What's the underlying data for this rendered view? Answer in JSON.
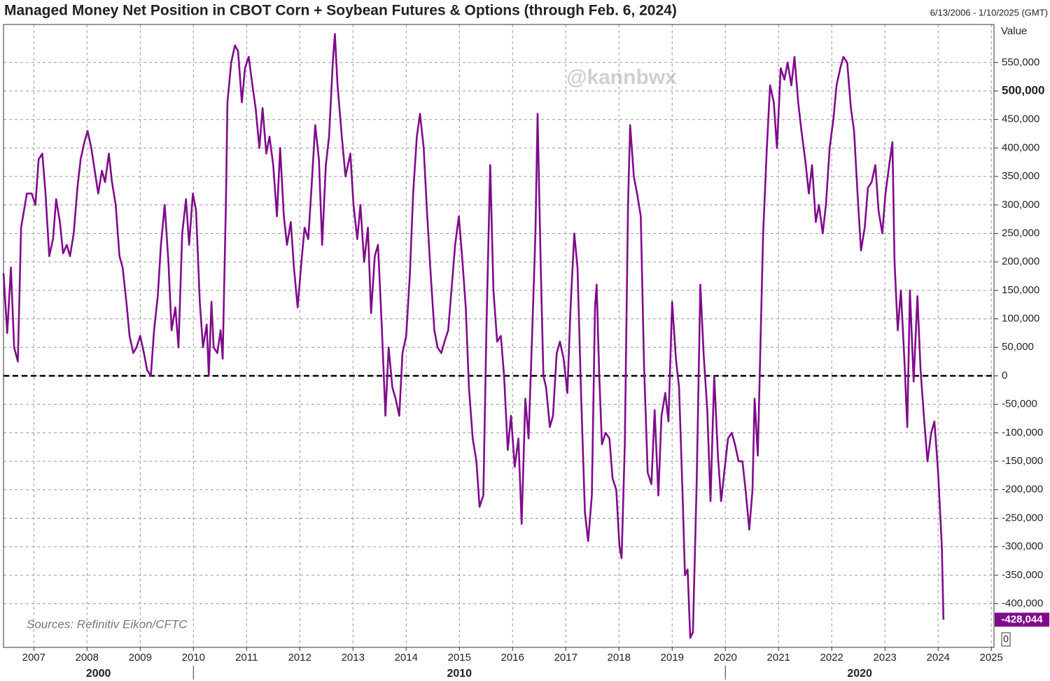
{
  "chart_data": {
    "type": "line",
    "title": "Managed Money Net Position in CBOT Corn + Soybean Futures & Options (through Feb. 6, 2024)",
    "date_range": "6/13/2006 - 1/10/2025 (GMT)",
    "y_axis_header": "Value",
    "watermark": "@kannbwx",
    "source": "Sources: Refinitiv Eikon/CFTC",
    "bottom_axis_label": "0",
    "end_label": "-428,044",
    "zero_line": true,
    "grid": true,
    "bold_tick": 500000,
    "xlim": [
      2006.43,
      2025.05
    ],
    "xticks": [
      2007,
      2008,
      2009,
      2010,
      2011,
      2012,
      2013,
      2014,
      2015,
      2016,
      2017,
      2018,
      2019,
      2020,
      2021,
      2022,
      2023,
      2024,
      2025
    ],
    "x_decades": [
      2000,
      2010,
      2020
    ],
    "ylim": [
      -476700,
      616700
    ],
    "yticks": [
      {
        "value": -400000,
        "label": "-400,000"
      },
      {
        "value": -350000,
        "label": "-350,000"
      },
      {
        "value": -300000,
        "label": "-300,000"
      },
      {
        "value": -250000,
        "label": "-250,000"
      },
      {
        "value": -200000,
        "label": "-200,000"
      },
      {
        "value": -150000,
        "label": "-150,000"
      },
      {
        "value": -100000,
        "label": "-100,000"
      },
      {
        "value": -50000,
        "label": "-50,000"
      },
      0,
      {
        "value": 50000,
        "label": "50,000"
      },
      {
        "value": 100000,
        "label": "100,000"
      },
      {
        "value": 150000,
        "label": "150,000"
      },
      {
        "value": 200000,
        "label": "200,000"
      },
      {
        "value": 250000,
        "label": "250,000"
      },
      {
        "value": 300000,
        "label": "300,000"
      },
      {
        "value": 350000,
        "label": "350,000"
      },
      {
        "value": 400000,
        "label": "400,000"
      },
      {
        "value": 450000,
        "label": "450,000"
      },
      {
        "value": 500000,
        "label": "500,000"
      },
      {
        "value": 550000,
        "label": "550,000"
      }
    ],
    "x": [
      2006.43,
      2006.5,
      2006.57,
      2006.63,
      2006.7,
      2006.76,
      2006.87,
      2006.96,
      2007.03,
      2007.09,
      2007.16,
      2007.22,
      2007.29,
      2007.36,
      2007.42,
      2007.49,
      2007.55,
      2007.62,
      2007.68,
      2007.75,
      2007.82,
      2007.88,
      2007.95,
      2008.01,
      2008.08,
      2008.21,
      2008.28,
      2008.34,
      2008.41,
      2008.47,
      2008.54,
      2008.61,
      2008.67,
      2008.74,
      2008.8,
      2008.87,
      2008.93,
      2009.0,
      2009.07,
      2009.13,
      2009.2,
      2009.26,
      2009.33,
      2009.39,
      2009.46,
      2009.53,
      2009.59,
      2009.66,
      2009.72,
      2009.79,
      2009.86,
      2009.92,
      2009.99,
      2010.05,
      2010.12,
      2010.18,
      2010.25,
      2010.29,
      2010.34,
      2010.38,
      2010.45,
      2010.51,
      2010.55,
      2010.61,
      2010.64,
      2010.71,
      2010.78,
      2010.84,
      2010.91,
      2010.97,
      2011.04,
      2011.11,
      2011.17,
      2011.24,
      2011.3,
      2011.37,
      2011.43,
      2011.5,
      2011.57,
      2011.63,
      2011.7,
      2011.76,
      2011.83,
      2011.89,
      2011.96,
      2012.03,
      2012.09,
      2012.16,
      2012.22,
      2012.29,
      2012.36,
      2012.42,
      2012.49,
      2012.55,
      2012.62,
      2012.66,
      2012.71,
      2012.79,
      2012.86,
      2012.95,
      2013.01,
      2013.08,
      2013.14,
      2013.21,
      2013.28,
      2013.34,
      2013.41,
      2013.47,
      2013.54,
      2013.61,
      2013.67,
      2013.74,
      2013.8,
      2013.87,
      2013.93,
      2014.0,
      2014.07,
      2014.13,
      2014.2,
      2014.26,
      2014.33,
      2014.39,
      2014.46,
      2014.53,
      2014.59,
      2014.66,
      2014.72,
      2014.79,
      2014.86,
      2014.92,
      2014.99,
      2015.05,
      2015.12,
      2015.18,
      2015.25,
      2015.32,
      2015.38,
      2015.45,
      2015.51,
      2015.58,
      2015.64,
      2015.71,
      2015.78,
      2015.84,
      2015.91,
      2015.97,
      2016.04,
      2016.11,
      2016.17,
      2016.24,
      2016.3,
      2016.37,
      2016.43,
      2016.47,
      2016.53,
      2016.58,
      2016.63,
      2016.7,
      2016.76,
      2016.83,
      2016.89,
      2016.96,
      2017.03,
      2017.09,
      2017.16,
      2017.22,
      2017.29,
      2017.36,
      2017.42,
      2017.49,
      2017.55,
      2017.58,
      2017.63,
      2017.68,
      2017.75,
      2017.82,
      2017.88,
      2017.95,
      2018.01,
      2018.05,
      2018.11,
      2018.17,
      2018.21,
      2018.28,
      2018.34,
      2018.41,
      2018.47,
      2018.54,
      2018.61,
      2018.67,
      2018.74,
      2018.8,
      2018.87,
      2018.93,
      2019.0,
      2019.07,
      2019.13,
      2019.2,
      2019.24,
      2019.29,
      2019.34,
      2019.39,
      2019.46,
      2019.53,
      2019.59,
      2019.66,
      2019.72,
      2019.79,
      2019.86,
      2019.92,
      2019.99,
      2020.05,
      2020.12,
      2020.18,
      2020.25,
      2020.32,
      2020.38,
      2020.45,
      2020.51,
      2020.55,
      2020.61,
      2020.64,
      2020.71,
      2020.78,
      2020.84,
      2020.91,
      2020.97,
      2021.04,
      2021.11,
      2021.17,
      2021.24,
      2021.3,
      2021.37,
      2021.43,
      2021.5,
      2021.57,
      2021.63,
      2021.7,
      2021.76,
      2021.83,
      2021.89,
      2021.96,
      2022.03,
      2022.09,
      2022.16,
      2022.22,
      2022.29,
      2022.36,
      2022.42,
      2022.49,
      2022.55,
      2022.62,
      2022.68,
      2022.75,
      2022.82,
      2022.88,
      2022.95,
      2023.01,
      2023.08,
      2023.14,
      2023.18,
      2023.24,
      2023.3,
      2023.37,
      2023.42,
      2023.47,
      2023.54,
      2023.61,
      2023.67,
      2023.74,
      2023.8,
      2023.87,
      2023.93,
      2024.0,
      2024.07,
      2024.1
    ],
    "series": [
      {
        "color": "#800a8c",
        "values": [
          180000,
          75000,
          190000,
          50000,
          25000,
          260000,
          320000,
          320000,
          300000,
          380000,
          390000,
          320000,
          210000,
          240000,
          310000,
          270000,
          215000,
          230000,
          210000,
          250000,
          330000,
          380000,
          410000,
          430000,
          400000,
          320000,
          360000,
          340000,
          390000,
          340000,
          300000,
          210000,
          190000,
          130000,
          70000,
          40000,
          50000,
          70000,
          40000,
          10000,
          0,
          80000,
          140000,
          230000,
          300000,
          200000,
          80000,
          120000,
          50000,
          250000,
          310000,
          230000,
          320000,
          290000,
          130000,
          50000,
          90000,
          0,
          130000,
          50000,
          40000,
          80000,
          30000,
          300000,
          480000,
          550000,
          580000,
          570000,
          480000,
          540000,
          560000,
          510000,
          470000,
          400000,
          470000,
          390000,
          420000,
          370000,
          280000,
          400000,
          280000,
          230000,
          270000,
          190000,
          120000,
          200000,
          260000,
          240000,
          330000,
          440000,
          380000,
          230000,
          370000,
          420000,
          550000,
          600000,
          510000,
          420000,
          350000,
          390000,
          300000,
          240000,
          300000,
          200000,
          260000,
          110000,
          210000,
          230000,
          90000,
          -70000,
          50000,
          -20000,
          -40000,
          -70000,
          40000,
          70000,
          180000,
          320000,
          420000,
          460000,
          400000,
          290000,
          180000,
          80000,
          50000,
          40000,
          60000,
          80000,
          160000,
          230000,
          280000,
          210000,
          120000,
          -20000,
          -110000,
          -150000,
          -230000,
          -210000,
          90000,
          370000,
          150000,
          60000,
          70000,
          0,
          -130000,
          -70000,
          -160000,
          -110000,
          -260000,
          -40000,
          -110000,
          80000,
          250000,
          460000,
          190000,
          0,
          -20000,
          -90000,
          -70000,
          40000,
          60000,
          30000,
          -30000,
          120000,
          250000,
          190000,
          -40000,
          -240000,
          -290000,
          -210000,
          120000,
          160000,
          0,
          -120000,
          -100000,
          -110000,
          -180000,
          -200000,
          -300000,
          -320000,
          -120000,
          300000,
          440000,
          350000,
          320000,
          280000,
          20000,
          -170000,
          -190000,
          -60000,
          -210000,
          -70000,
          -30000,
          -80000,
          130000,
          30000,
          -20000,
          -220000,
          -350000,
          -340000,
          -460000,
          -450000,
          -190000,
          160000,
          40000,
          -60000,
          -220000,
          0,
          -140000,
          -220000,
          -160000,
          -110000,
          -100000,
          -120000,
          -150000,
          -150000,
          -200000,
          -270000,
          -200000,
          -40000,
          -140000,
          -20000,
          250000,
          400000,
          510000,
          480000,
          400000,
          540000,
          520000,
          550000,
          510000,
          560000,
          480000,
          430000,
          380000,
          320000,
          370000,
          270000,
          300000,
          250000,
          300000,
          400000,
          450000,
          510000,
          540000,
          560000,
          550000,
          470000,
          430000,
          310000,
          220000,
          260000,
          330000,
          340000,
          370000,
          290000,
          250000,
          320000,
          370000,
          410000,
          200000,
          80000,
          150000,
          20000,
          -90000,
          150000,
          -10000,
          140000,
          10000,
          -80000,
          -150000,
          -100000,
          -80000,
          -170000,
          -300000,
          -428044
        ]
      }
    ]
  }
}
